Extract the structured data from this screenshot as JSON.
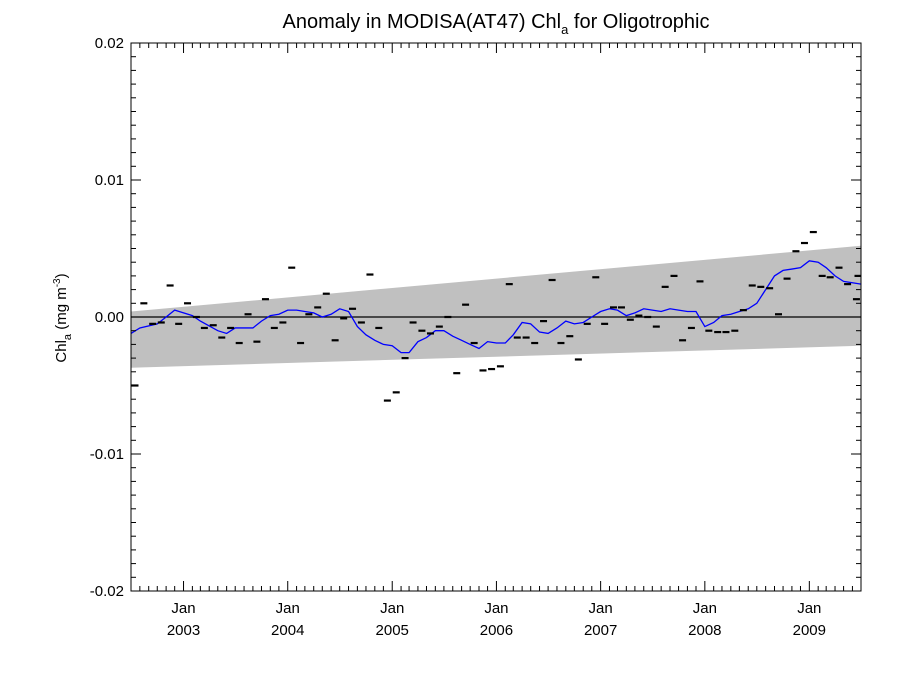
{
  "chart_data": {
    "type": "scatter",
    "title": {
      "main": "Anomaly in MODISA(AT47) Chl",
      "sub": "a",
      "suffix": " for Oligotrophic"
    },
    "ylabel": {
      "main": "Chl",
      "sub": "a",
      "unit_prefix": " (mg m",
      "unit_sup": "-3",
      "unit_suffix": ")"
    },
    "ylim": [
      -0.02,
      0.02
    ],
    "y_ticks": [
      -0.02,
      -0.01,
      0.0,
      0.01,
      0.02
    ],
    "y_tick_labels": [
      "-0.02",
      "-0.01",
      "0.00",
      "0.01",
      "0.02"
    ],
    "xlim": [
      "2002-07-01",
      "2009-07-01"
    ],
    "x_ticks": [
      {
        "date": "2003-01-01",
        "month": "Jan",
        "year": "2003"
      },
      {
        "date": "2004-01-01",
        "month": "Jan",
        "year": "2004"
      },
      {
        "date": "2005-01-01",
        "month": "Jan",
        "year": "2005"
      },
      {
        "date": "2006-01-01",
        "month": "Jan",
        "year": "2006"
      },
      {
        "date": "2007-01-01",
        "month": "Jan",
        "year": "2007"
      },
      {
        "date": "2008-01-01",
        "month": "Jan",
        "year": "2008"
      },
      {
        "date": "2009-01-01",
        "month": "Jan",
        "year": "2009"
      }
    ],
    "zero_line": 0.0,
    "band": {
      "color": "#c0c0c0",
      "upper": [
        [
          "2002-07-01",
          0.0004
        ],
        [
          "2009-07-01",
          0.0052
        ]
      ],
      "lower": [
        [
          "2002-07-01",
          -0.0037
        ],
        [
          "2009-07-01",
          -0.0021
        ]
      ]
    },
    "series": [
      {
        "kind": "monthly_markers",
        "color": "#000000",
        "points": [
          [
            "2002-07",
            -0.005
          ],
          [
            "2002-08",
            0.001
          ],
          [
            "2002-09",
            -0.0005
          ],
          [
            "2002-10",
            -0.0004
          ],
          [
            "2002-11",
            0.0023
          ],
          [
            "2002-12",
            -0.0005
          ],
          [
            "2003-01",
            0.001
          ],
          [
            "2003-02",
            0.0
          ],
          [
            "2003-03",
            -0.0008
          ],
          [
            "2003-04",
            -0.0006
          ],
          [
            "2003-05",
            -0.0015
          ],
          [
            "2003-06",
            -0.0008
          ],
          [
            "2003-07",
            -0.0019
          ],
          [
            "2003-08",
            0.0002
          ],
          [
            "2003-09",
            -0.0018
          ],
          [
            "2003-10",
            0.0013
          ],
          [
            "2003-11",
            -0.0008
          ],
          [
            "2003-12",
            -0.0004
          ],
          [
            "2004-01",
            0.0036
          ],
          [
            "2004-02",
            -0.0019
          ],
          [
            "2004-03",
            0.0002
          ],
          [
            "2004-04",
            0.0007
          ],
          [
            "2004-05",
            0.0017
          ],
          [
            "2004-06",
            -0.0017
          ],
          [
            "2004-07",
            -0.0001
          ],
          [
            "2004-08",
            0.0006
          ],
          [
            "2004-09",
            -0.0004
          ],
          [
            "2004-10",
            0.0031
          ],
          [
            "2004-11",
            -0.0008
          ],
          [
            "2004-12",
            -0.0061
          ],
          [
            "2005-01",
            -0.0055
          ],
          [
            "2005-02",
            -0.003
          ],
          [
            "2005-03",
            -0.0004
          ],
          [
            "2005-04",
            -0.001
          ],
          [
            "2005-05",
            -0.0012
          ],
          [
            "2005-06",
            -0.0007
          ],
          [
            "2005-07",
            0.0
          ],
          [
            "2005-08",
            -0.0041
          ],
          [
            "2005-09",
            0.0009
          ],
          [
            "2005-10",
            -0.0019
          ],
          [
            "2005-11",
            -0.0039
          ],
          [
            "2005-12",
            -0.0038
          ],
          [
            "2006-01",
            -0.0036
          ],
          [
            "2006-02",
            0.0024
          ],
          [
            "2006-03",
            -0.0015
          ],
          [
            "2006-04",
            -0.0015
          ],
          [
            "2006-05",
            -0.0019
          ],
          [
            "2006-06",
            -0.0003
          ],
          [
            "2006-07",
            0.0027
          ],
          [
            "2006-08",
            -0.0019
          ],
          [
            "2006-09",
            -0.0014
          ],
          [
            "2006-10",
            -0.0031
          ],
          [
            "2006-11",
            -0.0005
          ],
          [
            "2006-12",
            0.0029
          ],
          [
            "2007-01",
            -0.0005
          ],
          [
            "2007-02",
            0.0007
          ],
          [
            "2007-03",
            0.0007
          ],
          [
            "2007-04",
            -0.0002
          ],
          [
            "2007-05",
            0.0001
          ],
          [
            "2007-06",
            0.0
          ],
          [
            "2007-07",
            -0.0007
          ],
          [
            "2007-08",
            0.0022
          ],
          [
            "2007-09",
            0.003
          ],
          [
            "2007-10",
            -0.0017
          ],
          [
            "2007-11",
            -0.0008
          ],
          [
            "2007-12",
            0.0026
          ],
          [
            "2008-01",
            -0.001
          ],
          [
            "2008-02",
            -0.0011
          ],
          [
            "2008-03",
            -0.0011
          ],
          [
            "2008-04",
            -0.001
          ],
          [
            "2008-05",
            0.0005
          ],
          [
            "2008-06",
            0.0023
          ],
          [
            "2008-07",
            0.0022
          ],
          [
            "2008-08",
            0.0021
          ],
          [
            "2008-09",
            0.0002
          ],
          [
            "2008-10",
            0.0028
          ],
          [
            "2008-11",
            0.0048
          ],
          [
            "2008-12",
            0.0054
          ],
          [
            "2009-01",
            0.0062
          ],
          [
            "2009-02",
            0.003
          ],
          [
            "2009-03",
            0.0029
          ],
          [
            "2009-04",
            0.0036
          ],
          [
            "2009-05",
            0.0024
          ],
          [
            "2009-06",
            0.0013
          ],
          [
            "2009-07",
            0.003
          ]
        ]
      },
      {
        "kind": "running_mean_line",
        "color": "#0000ff",
        "points": [
          [
            "2002-07-01",
            -0.0012
          ],
          [
            "2002-08-01",
            -0.0008
          ],
          [
            "2002-10-01",
            -0.0005
          ],
          [
            "2002-11-01",
            0.0
          ],
          [
            "2002-12-01",
            0.0005
          ],
          [
            "2003-02-01",
            0.0001
          ],
          [
            "2003-03-01",
            -0.0003
          ],
          [
            "2003-05-01",
            -0.001
          ],
          [
            "2003-06-01",
            -0.0012
          ],
          [
            "2003-07-01",
            -0.0008
          ],
          [
            "2003-09-01",
            -0.0008
          ],
          [
            "2003-10-01",
            -0.0003
          ],
          [
            "2003-11-01",
            0.0001
          ],
          [
            "2003-12-01",
            0.0002
          ],
          [
            "2004-01-01",
            0.0005
          ],
          [
            "2004-02-01",
            0.0005
          ],
          [
            "2004-03-01",
            0.0004
          ],
          [
            "2004-04-01",
            0.0003
          ],
          [
            "2004-05-01",
            0.0
          ],
          [
            "2004-06-01",
            0.0002
          ],
          [
            "2004-07-01",
            0.0006
          ],
          [
            "2004-08-01",
            0.0004
          ],
          [
            "2004-09-01",
            -0.0007
          ],
          [
            "2004-10-01",
            -0.0013
          ],
          [
            "2004-11-01",
            -0.0017
          ],
          [
            "2004-12-01",
            -0.002
          ],
          [
            "2005-01-01",
            -0.0021
          ],
          [
            "2005-02-01",
            -0.0026
          ],
          [
            "2005-03-01",
            -0.0026
          ],
          [
            "2005-04-01",
            -0.0018
          ],
          [
            "2005-05-01",
            -0.0015
          ],
          [
            "2005-06-01",
            -0.001
          ],
          [
            "2005-07-01",
            -0.001
          ],
          [
            "2005-08-01",
            -0.0014
          ],
          [
            "2005-09-01",
            -0.0017
          ],
          [
            "2005-10-01",
            -0.002
          ],
          [
            "2005-11-01",
            -0.0023
          ],
          [
            "2005-12-01",
            -0.0018
          ],
          [
            "2006-01-01",
            -0.0019
          ],
          [
            "2006-02-01",
            -0.0019
          ],
          [
            "2006-03-01",
            -0.0013
          ],
          [
            "2006-04-01",
            -0.0004
          ],
          [
            "2006-05-01",
            -0.0005
          ],
          [
            "2006-06-01",
            -0.0011
          ],
          [
            "2006-07-01",
            -0.0012
          ],
          [
            "2006-08-01",
            -0.0008
          ],
          [
            "2006-09-01",
            -0.0003
          ],
          [
            "2006-10-01",
            -0.0005
          ],
          [
            "2006-11-01",
            -0.0004
          ],
          [
            "2006-12-01",
            0.0
          ],
          [
            "2007-01-01",
            0.0004
          ],
          [
            "2007-02-01",
            0.0006
          ],
          [
            "2007-03-01",
            0.0005
          ],
          [
            "2007-04-01",
            0.0001
          ],
          [
            "2007-05-01",
            0.0003
          ],
          [
            "2007-06-01",
            0.0006
          ],
          [
            "2007-07-01",
            0.0005
          ],
          [
            "2007-08-01",
            0.0004
          ],
          [
            "2007-09-01",
            0.0006
          ],
          [
            "2007-10-01",
            0.0005
          ],
          [
            "2007-11-01",
            0.0004
          ],
          [
            "2007-12-01",
            0.0004
          ],
          [
            "2008-01-01",
            -0.0007
          ],
          [
            "2008-02-01",
            -0.0004
          ],
          [
            "2008-03-01",
            0.0001
          ],
          [
            "2008-04-01",
            0.0002
          ],
          [
            "2008-05-01",
            0.0004
          ],
          [
            "2008-06-01",
            0.0006
          ],
          [
            "2008-07-01",
            0.001
          ],
          [
            "2008-08-01",
            0.002
          ],
          [
            "2008-09-01",
            0.003
          ],
          [
            "2008-10-01",
            0.0034
          ],
          [
            "2008-11-01",
            0.0035
          ],
          [
            "2008-12-01",
            0.0036
          ],
          [
            "2009-01-01",
            0.0041
          ],
          [
            "2009-02-01",
            0.004
          ],
          [
            "2009-03-01",
            0.0036
          ],
          [
            "2009-04-01",
            0.003
          ],
          [
            "2009-05-01",
            0.0026
          ],
          [
            "2009-06-01",
            0.0025
          ],
          [
            "2009-07-01",
            0.0024
          ]
        ]
      }
    ]
  }
}
